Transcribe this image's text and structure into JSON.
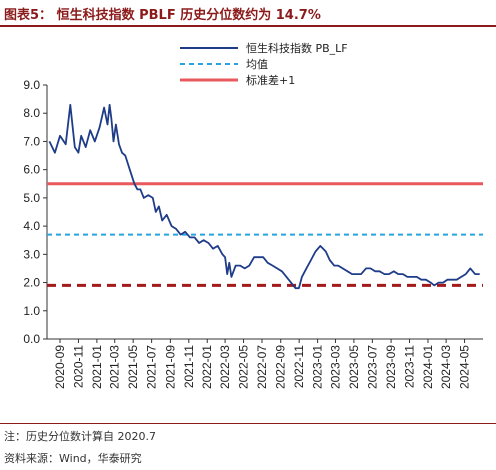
{
  "header": {
    "title": "图表5：  恒生科技指数 PBLF 历史分位数约为 14.7%"
  },
  "footer": {
    "note": "注：历史分位数计算自 2020.7",
    "source": "资料来源：Wind，华泰研究"
  },
  "chart_data": {
    "type": "line",
    "title": "图表5：  恒生科技指数 PBLF 历史分位数约为 14.7%",
    "xlabel": "",
    "ylabel": "",
    "ylim": [
      0,
      9
    ],
    "yticks": [
      "0.0",
      "1.0",
      "2.0",
      "3.0",
      "4.0",
      "5.0",
      "6.0",
      "7.0",
      "8.0",
      "9.0"
    ],
    "xticks": [
      "2020-09",
      "2020-11",
      "2021-01",
      "2021-03",
      "2021-05",
      "2021-07",
      "2021-09",
      "2021-11",
      "2022-01",
      "2022-03",
      "2022-05",
      "2022-07",
      "2022-09",
      "2022-11",
      "2023-01",
      "2023-03",
      "2023-05",
      "2023-07",
      "2023-09",
      "2023-11",
      "2024-01",
      "2024-03",
      "2024-05"
    ],
    "legend_position": "top-right",
    "grid": false,
    "series": [
      {
        "name": "恒生科技指数 PB_LF",
        "kind": "line",
        "color": "#1f3c88",
        "x": [
          "2020-07-28",
          "2020-08-15",
          "2020-09-01",
          "2020-09-20",
          "2020-10-05",
          "2020-10-20",
          "2020-11-01",
          "2020-11-10",
          "2020-11-25",
          "2020-12-10",
          "2020-12-25",
          "2021-01-10",
          "2021-01-25",
          "2021-02-05",
          "2021-02-12",
          "2021-02-18",
          "2021-02-25",
          "2021-03-05",
          "2021-03-15",
          "2021-03-25",
          "2021-04-05",
          "2021-04-20",
          "2021-05-05",
          "2021-05-15",
          "2021-05-25",
          "2021-06-05",
          "2021-06-20",
          "2021-07-05",
          "2021-07-15",
          "2021-07-25",
          "2021-08-05",
          "2021-08-20",
          "2021-09-05",
          "2021-09-20",
          "2021-10-05",
          "2021-10-20",
          "2021-11-05",
          "2021-11-20",
          "2021-12-05",
          "2021-12-20",
          "2022-01-05",
          "2022-01-20",
          "2022-02-05",
          "2022-02-20",
          "2022-03-01",
          "2022-03-08",
          "2022-03-15",
          "2022-03-22",
          "2022-04-05",
          "2022-04-20",
          "2022-05-05",
          "2022-05-20",
          "2022-06-05",
          "2022-06-20",
          "2022-07-05",
          "2022-07-20",
          "2022-08-05",
          "2022-08-20",
          "2022-09-05",
          "2022-09-20",
          "2022-10-05",
          "2022-10-20",
          "2022-10-31",
          "2022-11-10",
          "2022-11-25",
          "2022-12-10",
          "2022-12-25",
          "2023-01-10",
          "2023-01-28",
          "2023-02-10",
          "2023-02-25",
          "2023-03-10",
          "2023-03-25",
          "2023-04-10",
          "2023-04-25",
          "2023-05-10",
          "2023-05-25",
          "2023-06-10",
          "2023-06-25",
          "2023-07-10",
          "2023-07-25",
          "2023-08-10",
          "2023-08-25",
          "2023-09-10",
          "2023-09-25",
          "2023-10-10",
          "2023-10-25",
          "2023-11-10",
          "2023-11-25",
          "2023-12-10",
          "2023-12-25",
          "2024-01-10",
          "2024-01-22",
          "2024-02-05",
          "2024-02-20",
          "2024-03-05",
          "2024-03-20",
          "2024-04-05",
          "2024-04-20",
          "2024-05-05",
          "2024-05-20",
          "2024-06-05",
          "2024-06-20"
        ],
        "y": [
          7.0,
          6.6,
          7.2,
          6.9,
          8.3,
          6.8,
          6.6,
          7.2,
          6.8,
          7.4,
          7.0,
          7.5,
          8.2,
          7.6,
          8.3,
          7.8,
          7.0,
          7.6,
          6.9,
          6.6,
          6.5,
          6.0,
          5.5,
          5.3,
          5.3,
          5.0,
          5.1,
          5.0,
          4.5,
          4.7,
          4.2,
          4.4,
          4.0,
          3.9,
          3.7,
          3.8,
          3.6,
          3.6,
          3.4,
          3.5,
          3.4,
          3.2,
          3.3,
          3.0,
          2.9,
          2.3,
          2.7,
          2.2,
          2.6,
          2.6,
          2.5,
          2.6,
          2.9,
          2.9,
          2.9,
          2.7,
          2.6,
          2.5,
          2.4,
          2.2,
          2.0,
          1.8,
          1.8,
          2.2,
          2.5,
          2.8,
          3.1,
          3.3,
          3.1,
          2.8,
          2.6,
          2.6,
          2.5,
          2.4,
          2.3,
          2.3,
          2.3,
          2.5,
          2.5,
          2.4,
          2.4,
          2.3,
          2.3,
          2.4,
          2.3,
          2.3,
          2.2,
          2.2,
          2.2,
          2.1,
          2.1,
          2.0,
          1.9,
          2.0,
          2.0,
          2.1,
          2.1,
          2.1,
          2.2,
          2.3,
          2.5,
          2.3,
          2.3
        ]
      },
      {
        "name": "均值",
        "kind": "hline",
        "value": 3.7,
        "color": "#29a3e0"
      },
      {
        "name": "标准差+1",
        "kind": "hline",
        "value": 5.5,
        "color": "#e8585c"
      },
      {
        "name": "",
        "kind": "hline",
        "value": 1.9,
        "color": "#a31a1a"
      }
    ]
  }
}
